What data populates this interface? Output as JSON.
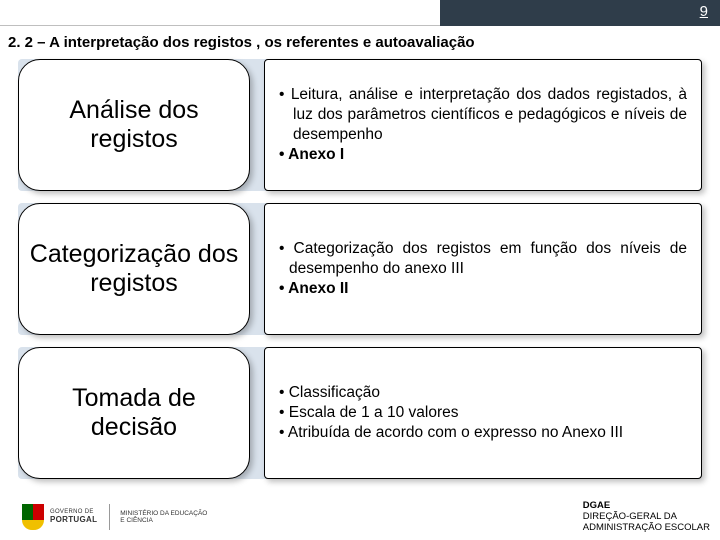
{
  "page_number": "9",
  "section_title": "2. 2 – A interpretação dos registos , os referentes e autoavaliação",
  "colors": {
    "header_dark": "#2f3d4a",
    "row_bg": "#d9e2ec",
    "border": "#000000",
    "background": "#ffffff"
  },
  "rows": [
    {
      "label": "Análise dos registos",
      "bullets": [
        {
          "text": "Leitura, análise e interpretação dos dados registados, à luz dos parâmetros científicos e pedagógicos e níveis de desempenho",
          "bold": false
        },
        {
          "text": "Anexo I",
          "bold": true
        }
      ]
    },
    {
      "label": "Categorização dos registos",
      "bullets": [
        {
          "text": "Categorização dos registos em função dos níveis de desempenho do anexo III",
          "bold": false
        },
        {
          "text": "Anexo II",
          "bold": true
        }
      ]
    },
    {
      "label": "Tomada de decisão",
      "bullets": [
        {
          "text": "Classificação",
          "bold": false
        },
        {
          "text": "Escala de 1 a 10 valores",
          "bold": false
        },
        {
          "text": "Atribuída de acordo com o expresso no Anexo III",
          "bold": false
        }
      ]
    }
  ],
  "logo": {
    "line1": "GOVERNO DE",
    "line2": "PORTUGAL",
    "ministry_line1": "MINISTÉRIO DA EDUCAÇÃO",
    "ministry_line2": "E CIÊNCIA"
  },
  "dgae": {
    "abbr": "DGAE",
    "line1": "DIREÇÃO-GERAL DA",
    "line2": "ADMINISTRAÇÃO ESCOLAR"
  }
}
